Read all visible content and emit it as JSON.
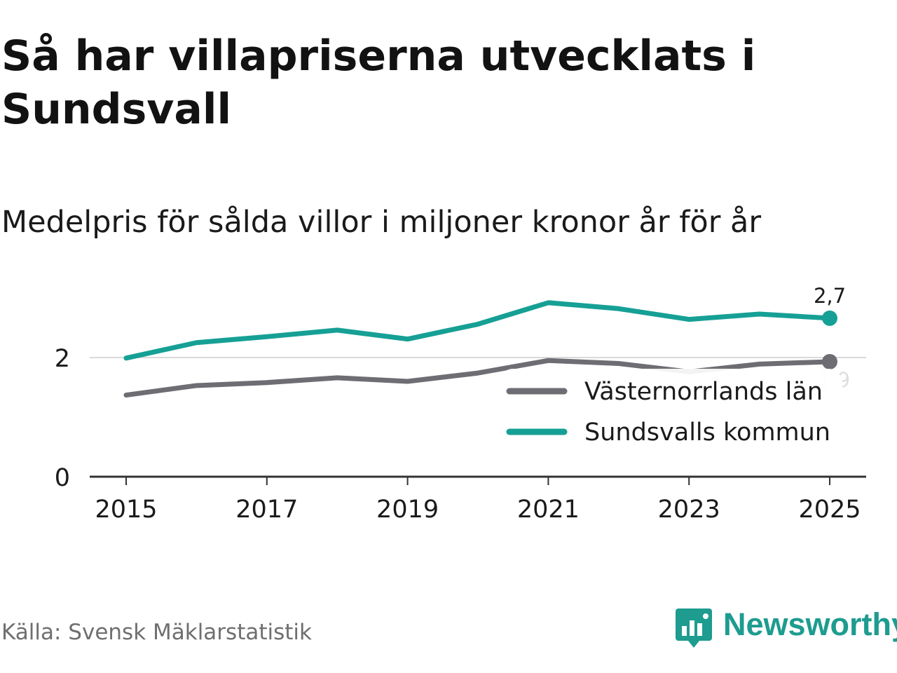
{
  "header": {
    "title": "Så har villapriserna utvecklats i Sundsvall",
    "subtitle": "Medelpris för sålda villor i miljoner kronor år för år"
  },
  "footer": {
    "source": "Källa: Svensk Mäklarstatistik",
    "brand": "Newsworthy"
  },
  "colors": {
    "sundsvall": "#16a095",
    "lan": "#6e6d73",
    "grid": "#d9d9d9",
    "axis": "#333333",
    "brand": "#1d9c8f"
  },
  "chart_data": {
    "type": "line",
    "title": "Så har villapriserna utvecklats i Sundsvall",
    "subtitle": "Medelpris för sålda villor i miljoner kronor år för år",
    "xlabel": "",
    "ylabel": "",
    "x": [
      2015,
      2016,
      2017,
      2018,
      2019,
      2020,
      2021,
      2022,
      2023,
      2024,
      2025
    ],
    "xticks": [
      "2015",
      "2017",
      "2019",
      "2021",
      "2023",
      "2025"
    ],
    "yticks": [
      "0",
      "2"
    ],
    "ylim": [
      0,
      3.1
    ],
    "legend_position": "bottom-right",
    "series": [
      {
        "name": "Västernorrlands län",
        "values": [
          1.37,
          1.53,
          1.58,
          1.66,
          1.6,
          1.74,
          1.95,
          1.9,
          1.76,
          1.89,
          1.93
        ],
        "end_label": "1,9"
      },
      {
        "name": "Sundsvalls kommun",
        "values": [
          1.99,
          2.25,
          2.35,
          2.46,
          2.31,
          2.56,
          2.92,
          2.82,
          2.64,
          2.73,
          2.66
        ],
        "end_label": "2,7"
      }
    ]
  }
}
